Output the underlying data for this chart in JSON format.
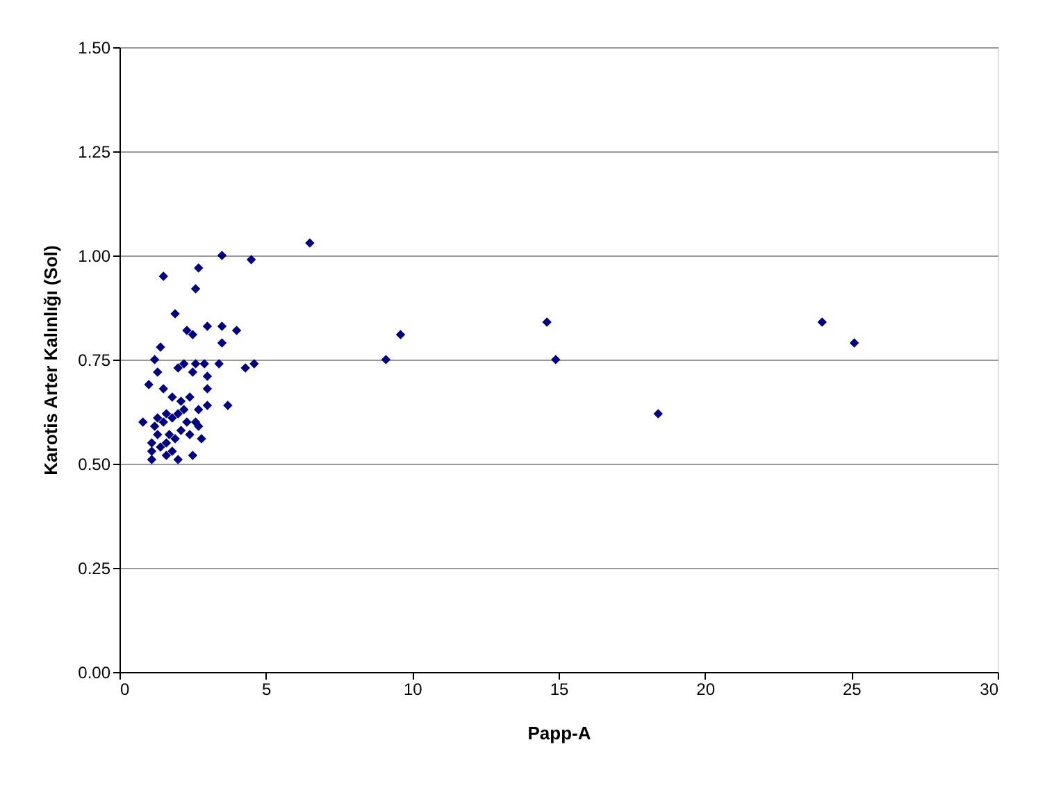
{
  "chart_data": {
    "type": "scatter",
    "xlabel": "Papp-A",
    "ylabel": "Karotis Arter Kalınlığı (Sol)",
    "x": [
      1.5,
      3.5,
      4.5,
      6.5,
      2.7,
      2.6,
      1.9,
      2.3,
      2.5,
      3.0,
      3.5,
      4.0,
      3.5,
      1.4,
      1.2,
      1.0,
      1.3,
      2.2,
      2.6,
      2.9,
      2.0,
      2.5,
      3.0,
      3.4,
      4.3,
      4.6,
      1.5,
      3.0,
      2.4,
      1.8,
      3.7,
      3.0,
      2.7,
      2.2,
      1.6,
      0.8,
      1.2,
      1.5,
      1.8,
      2.0,
      2.3,
      2.6,
      2.1,
      1.7,
      1.9,
      1.3,
      1.6,
      2.8,
      2.4,
      1.1,
      1.1,
      1.4,
      1.8,
      2.0,
      1.1,
      2.5,
      1.6,
      1.3,
      2.1,
      2.7,
      9.1,
      9.6,
      14.6,
      14.9,
      18.4,
      24.0,
      25.1
    ],
    "series": [
      {
        "color": "#000080",
        "values": [
          0.95,
          1.0,
          0.99,
          1.03,
          0.97,
          0.92,
          0.86,
          0.82,
          0.81,
          0.83,
          0.83,
          0.82,
          0.79,
          0.78,
          0.75,
          0.69,
          0.72,
          0.74,
          0.74,
          0.74,
          0.73,
          0.72,
          0.71,
          0.74,
          0.73,
          0.74,
          0.68,
          0.68,
          0.66,
          0.66,
          0.64,
          0.64,
          0.63,
          0.63,
          0.62,
          0.6,
          0.59,
          0.6,
          0.61,
          0.62,
          0.6,
          0.6,
          0.58,
          0.57,
          0.56,
          0.57,
          0.55,
          0.56,
          0.57,
          0.55,
          0.53,
          0.54,
          0.53,
          0.51,
          0.51,
          0.52,
          0.52,
          0.61,
          0.65,
          0.59,
          0.75,
          0.81,
          0.84,
          0.75,
          0.62,
          0.84,
          0.79
        ]
      }
    ],
    "xlim": [
      0,
      30
    ],
    "xticks": [
      0,
      5,
      10,
      15,
      20,
      25,
      30
    ],
    "ylim": [
      0,
      1.5
    ],
    "yticks": [
      {
        "value": 0,
        "label": "0.00"
      },
      {
        "value": 0.25,
        "label": "0.25"
      },
      {
        "value": 0.5,
        "label": "0.50"
      },
      {
        "value": 0.75,
        "label": "0.75"
      },
      {
        "value": 1.0,
        "label": "1.00"
      },
      {
        "value": 1.25,
        "label": "1.25"
      },
      {
        "value": 1.5,
        "label": "1.50"
      }
    ],
    "grid": "y",
    "marker": "diamond"
  }
}
